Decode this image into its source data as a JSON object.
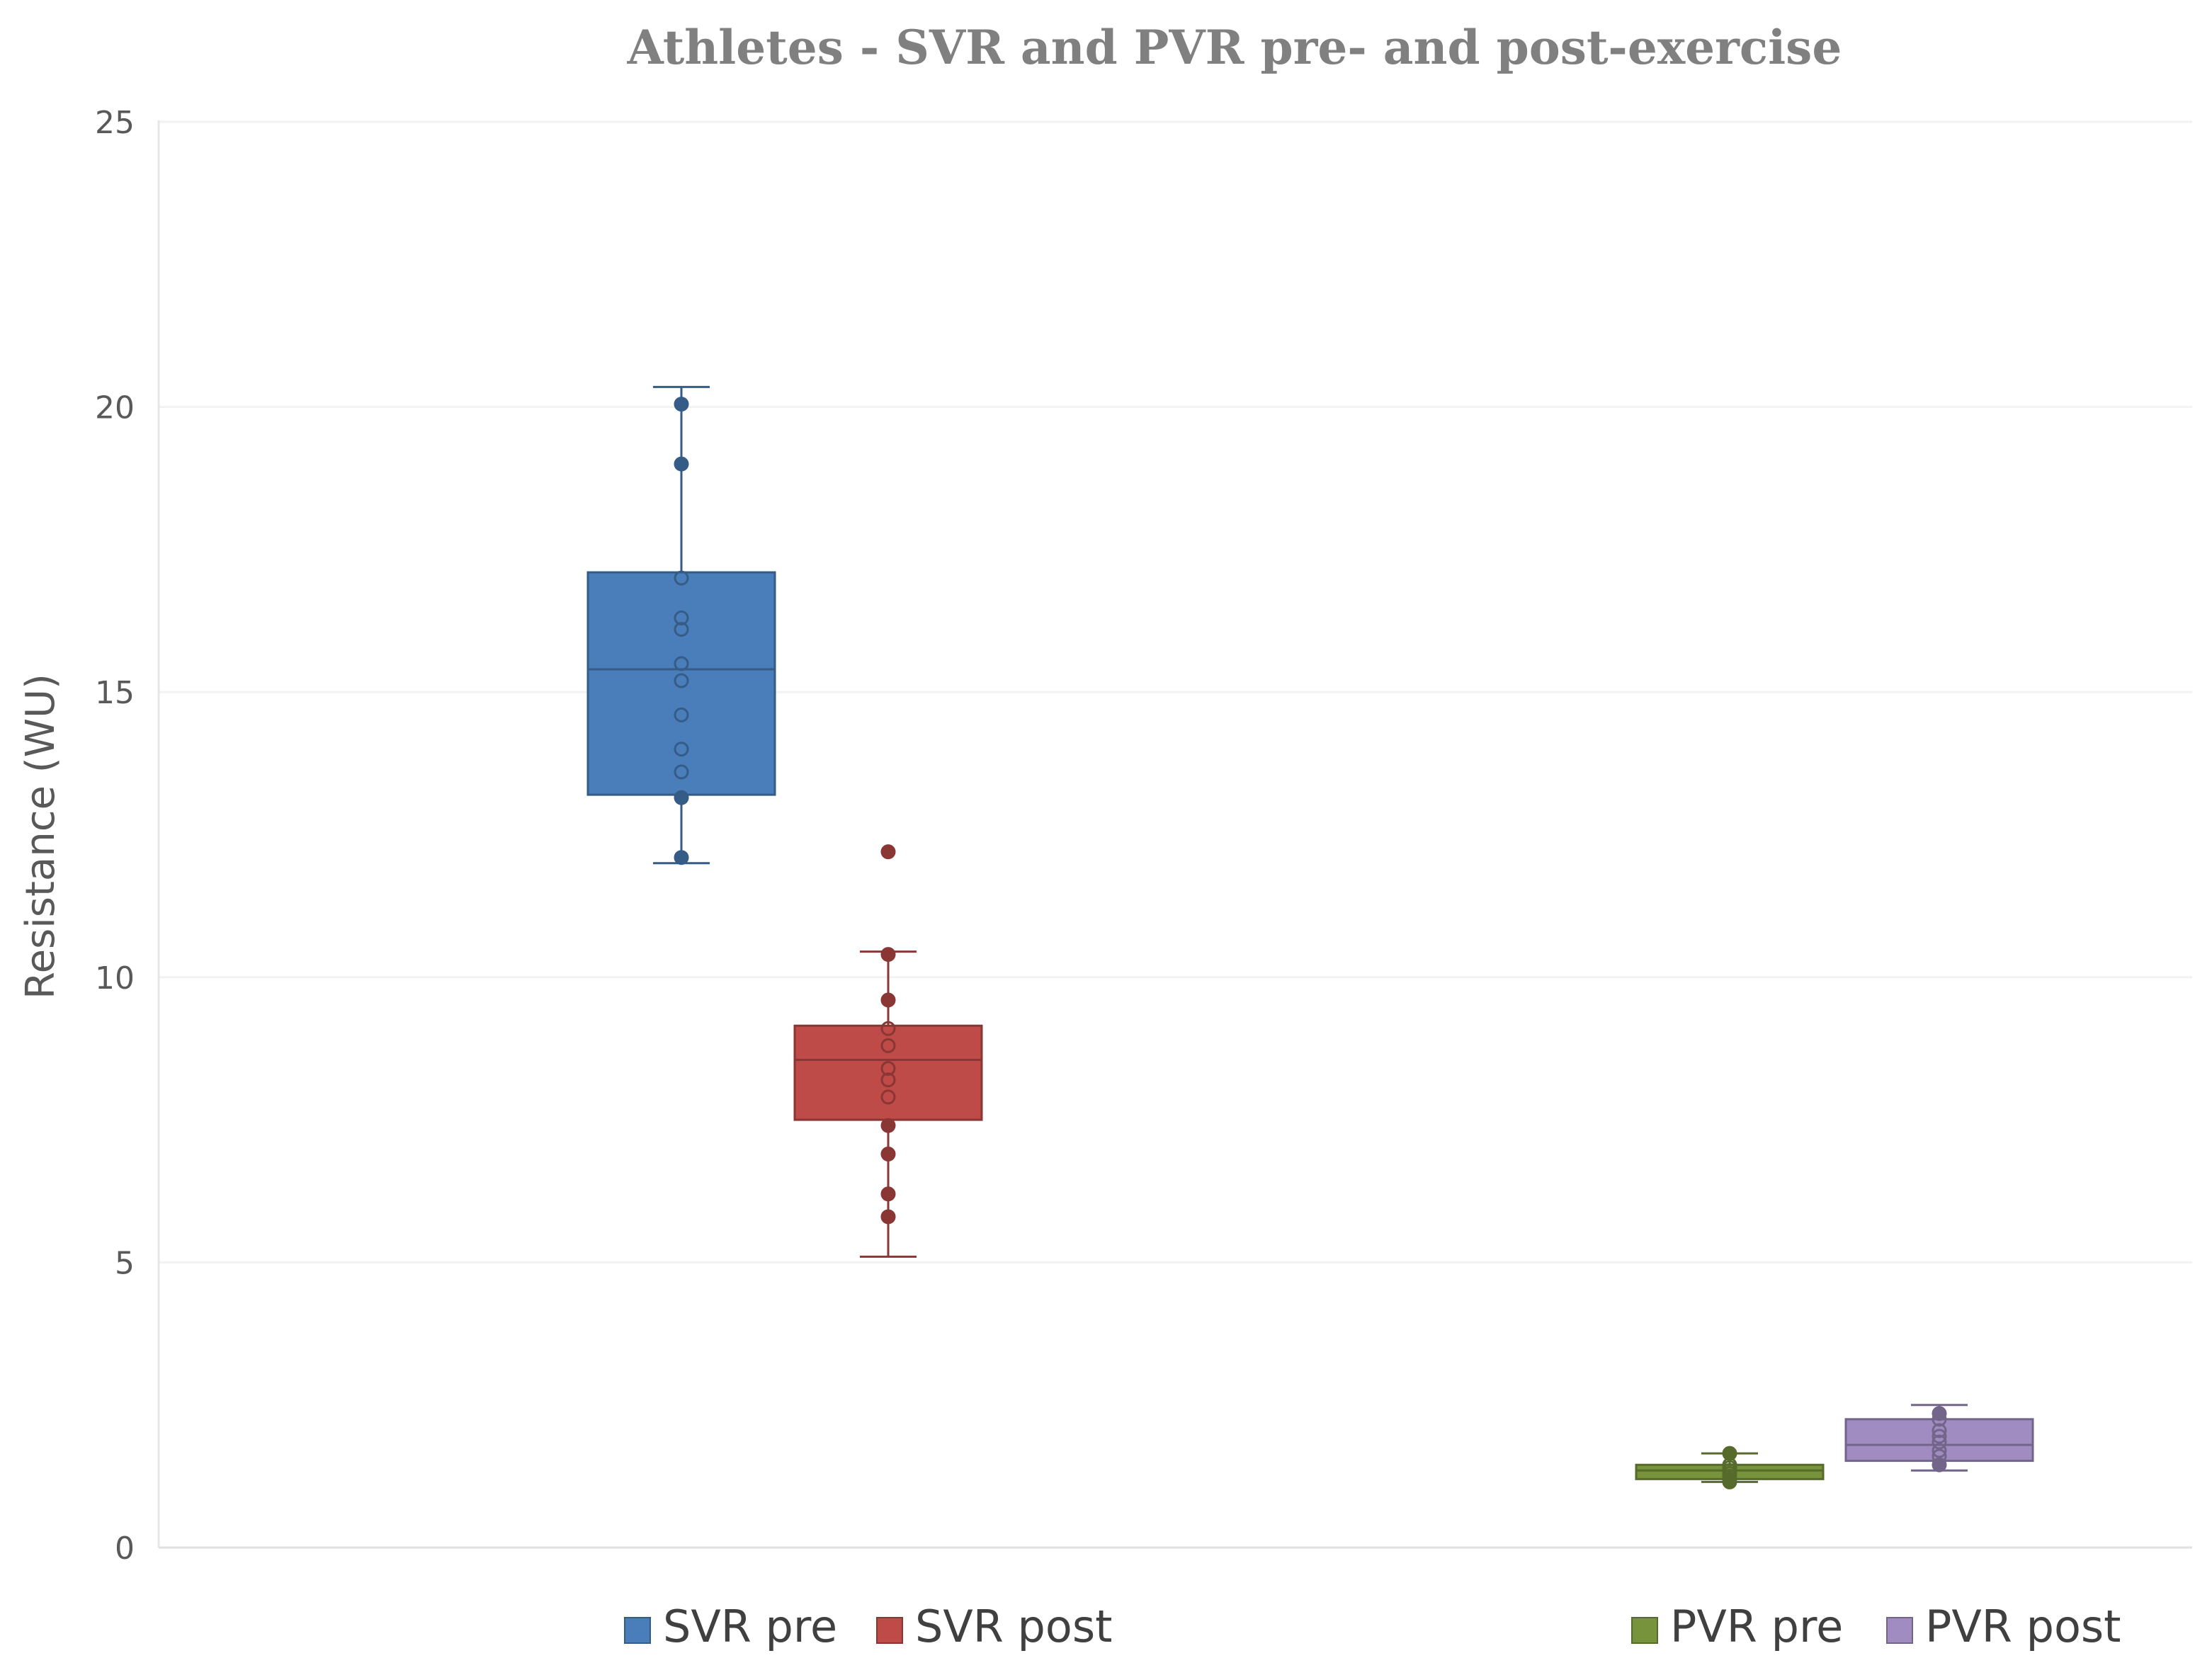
{
  "chart_data": {
    "type": "box",
    "title": "Athletes - SVR and PVR pre- and post-exercise",
    "xlabel": "",
    "ylabel": "Resistance (WU)",
    "ylim": [
      0,
      25
    ],
    "yticks": [
      0,
      5,
      10,
      15,
      20,
      25
    ],
    "grid": true,
    "legend_position": "bottom",
    "series": [
      {
        "name": "SVR pre",
        "color": "#4a7ebb",
        "group": "SVR",
        "whisker_low": 12.0,
        "q1": 13.2,
        "median": 15.4,
        "q3": 17.1,
        "whisker_high": 20.35,
        "points": [
          12.1,
          13.15,
          13.6,
          14.0,
          14.6,
          15.2,
          15.5,
          16.1,
          16.3,
          17.0,
          19.0,
          20.05
        ]
      },
      {
        "name": "SVR post",
        "color": "#be4b48",
        "group": "SVR",
        "whisker_low": 5.1,
        "q1": 7.5,
        "median": 8.55,
        "q3": 9.15,
        "whisker_high": 10.45,
        "points": [
          5.8,
          6.2,
          6.9,
          7.4,
          7.9,
          8.2,
          8.4,
          8.8,
          9.1,
          9.6,
          10.4,
          12.2
        ]
      },
      {
        "name": "PVR pre",
        "color": "#77933c",
        "group": "PVR",
        "whisker_low": 1.15,
        "q1": 1.2,
        "median": 1.35,
        "q3": 1.45,
        "whisker_high": 1.65,
        "points": [
          1.15,
          1.2,
          1.25,
          1.3,
          1.35,
          1.4,
          1.45,
          1.65
        ]
      },
      {
        "name": "PVR post",
        "color": "#a08cc0",
        "group": "PVR",
        "whisker_low": 1.35,
        "q1": 1.52,
        "median": 1.8,
        "q3": 2.25,
        "whisker_high": 2.5,
        "points": [
          1.45,
          1.6,
          1.7,
          1.85,
          1.95,
          2.05,
          2.25,
          2.35
        ]
      }
    ]
  }
}
